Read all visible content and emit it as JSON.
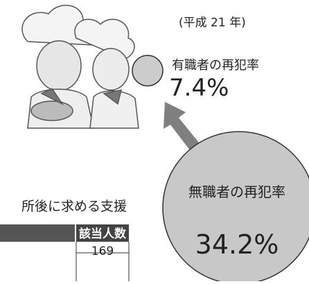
{
  "period": "(平成 21 年)",
  "employed": {
    "label": "有職者の再犯率",
    "rate": "7.4%"
  },
  "unemployed": {
    "label": "無職者の再犯率",
    "rate": "34.2%"
  },
  "table": {
    "caption": "所後に求める支援",
    "header": [
      "該当人数"
    ],
    "rows": [
      [
        "169"
      ]
    ]
  }
}
